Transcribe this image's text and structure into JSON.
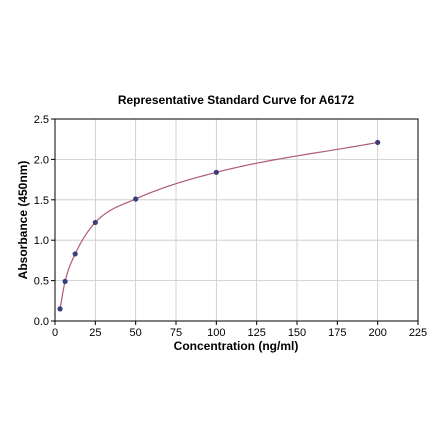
{
  "chart_data": {
    "type": "scatter",
    "title": "Representative Standard Curve for A6172",
    "xlabel": "Concentration (ng/ml)",
    "ylabel": "Absorbance (450nm)",
    "xlim": [
      0,
      225
    ],
    "ylim": [
      0,
      2.5
    ],
    "x_ticks": [
      "0",
      "25",
      "50",
      "75",
      "100",
      "125",
      "150",
      "175",
      "200",
      "225"
    ],
    "y_ticks": [
      "0.0",
      "0.5",
      "1.0",
      "1.5",
      "2.0",
      "2.5"
    ],
    "grid": true,
    "points": [
      {
        "x": 3.125,
        "y": 0.15
      },
      {
        "x": 6.25,
        "y": 0.49
      },
      {
        "x": 12.5,
        "y": 0.83
      },
      {
        "x": 25,
        "y": 1.22
      },
      {
        "x": 50,
        "y": 1.51
      },
      {
        "x": 100,
        "y": 1.84
      },
      {
        "x": 200,
        "y": 2.21
      }
    ],
    "fit_curve": true,
    "colors": {
      "point": "#3a3f7a",
      "curve": "#b05a7a",
      "grid": "#c8c8c8",
      "axis": "#000000"
    }
  }
}
